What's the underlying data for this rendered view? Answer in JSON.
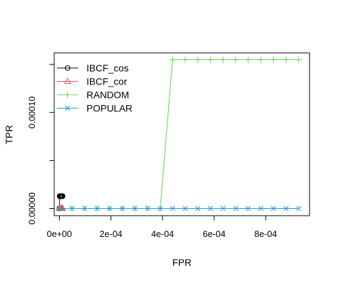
{
  "chart_data": {
    "type": "line",
    "xlabel": "FPR",
    "ylabel": "TPR",
    "xlim": [
      -2e-05,
      0.00097
    ],
    "ylim": [
      -7.5e-06,
      0.000162
    ],
    "x_ticks": [
      0,
      0.0002,
      0.0004,
      0.0006,
      0.0008
    ],
    "x_tick_labels": [
      "0e+00",
      "2e-04",
      "4e-04",
      "6e-04",
      "8e-04"
    ],
    "y_ticks": [
      0,
      0.0001
    ],
    "y_tick_labels": [
      "0.00000",
      "0.00010"
    ],
    "grid": false,
    "legend_position": "top-left",
    "series": [
      {
        "name": "IBCF_cos",
        "color": "#000000",
        "marker": "circle",
        "x": [
          0,
          1.2e-06,
          2.5e-06,
          3.7e-06,
          5e-06,
          6.2e-06,
          7.5e-06,
          8.7e-06,
          1e-05,
          1.12e-05,
          1.25e-05
        ],
        "y": [
          0,
          1.28e-05,
          1.28e-05,
          1.28e-05,
          1.28e-05,
          1.28e-05,
          1.28e-05,
          1.28e-05,
          1.28e-05,
          1.28e-05,
          1.28e-05
        ]
      },
      {
        "name": "IBCF_cor",
        "color": "#DF536B",
        "marker": "triangle",
        "x": [
          0,
          1.2e-06,
          2.5e-06,
          3.7e-06,
          5e-06,
          6.2e-06,
          7.5e-06,
          8.7e-06,
          1e-05,
          1.12e-05,
          1.25e-05
        ],
        "y": [
          0,
          0,
          0,
          0,
          0,
          0,
          0,
          0,
          0,
          0,
          0
        ]
      },
      {
        "name": "RANDOM",
        "color": "#61D04F",
        "marker": "plus",
        "x": [
          0,
          4.88e-05,
          9.76e-05,
          0.000146,
          0.000195,
          0.000244,
          0.000293,
          0.000342,
          0.000391,
          0.000439,
          0.000488,
          0.000537,
          0.000586,
          0.000635,
          0.000684,
          0.000732,
          0.000781,
          0.00083,
          0.000879,
          0.000928
        ],
        "y": [
          0,
          0,
          0,
          0,
          0,
          0,
          0,
          0,
          0,
          0.000155,
          0.000155,
          0.000155,
          0.000155,
          0.000155,
          0.000155,
          0.000155,
          0.000155,
          0.000155,
          0.000155,
          0.000155
        ]
      },
      {
        "name": "POPULAR",
        "color": "#2297E6",
        "marker": "cross",
        "x": [
          0,
          4.88e-05,
          9.76e-05,
          0.000146,
          0.000195,
          0.000244,
          0.000293,
          0.000342,
          0.000391,
          0.000439,
          0.000488,
          0.000537,
          0.000586,
          0.000635,
          0.000684,
          0.000732,
          0.000781,
          0.00083,
          0.000879,
          0.000928
        ],
        "y": [
          0,
          0,
          0,
          0,
          0,
          0,
          0,
          0,
          0,
          0,
          0,
          0,
          0,
          0,
          0,
          0,
          0,
          0,
          0,
          0
        ]
      }
    ]
  }
}
